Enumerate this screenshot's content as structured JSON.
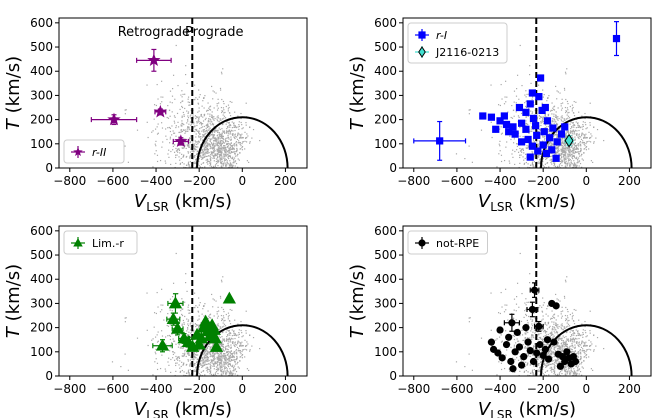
{
  "chart_data": [
    {
      "type": "scatter",
      "panel": "top-left",
      "xlabel": "V",
      "xlabel_sub": "LSR",
      "xlabel_unit": "(km/s)",
      "ylabel": "T",
      "ylabel_unit": "(km/s)",
      "xlim": [
        -850,
        300
      ],
      "ylim": [
        0,
        620
      ],
      "xticks": [
        "−800",
        "−600",
        "−400",
        "−200",
        "0",
        "200"
      ],
      "xtick_values": [
        -800,
        -600,
        -400,
        -200,
        0,
        200
      ],
      "yticks": [
        "0",
        "100",
        "200",
        "300",
        "400",
        "500",
        "600"
      ],
      "ytick_values": [
        0,
        100,
        200,
        300,
        400,
        500,
        600
      ],
      "annotations": [
        {
          "text": "Retrograde",
          "x": -410,
          "y": 545
        },
        {
          "text": "Prograde",
          "x": -130,
          "y": 545
        }
      ],
      "vline": -232,
      "circle_radius": 210,
      "legend": {
        "location": "lower left",
        "entries": [
          "r-II"
        ]
      },
      "series": [
        {
          "name": "r-II",
          "marker": "star",
          "color": "#800080",
          "points": [
            {
              "x": -410,
              "y": 445,
              "xerr": 80,
              "yerr": 45
            },
            {
              "x": -595,
              "y": 200,
              "xerr": 105,
              "yerr": 20
            },
            {
              "x": -380,
              "y": 232,
              "xerr": 25,
              "yerr": 12
            },
            {
              "x": -285,
              "y": 110,
              "xerr": 35,
              "yerr": 15
            }
          ]
        }
      ]
    },
    {
      "type": "scatter",
      "panel": "top-right",
      "xlabel": "V",
      "xlabel_sub": "LSR",
      "xlabel_unit": "(km/s)",
      "ylabel": "T",
      "ylabel_unit": "(km/s)",
      "xlim": [
        -850,
        300
      ],
      "ylim": [
        0,
        620
      ],
      "xticks": [
        "−800",
        "−600",
        "−400",
        "−200",
        "0",
        "200"
      ],
      "xtick_values": [
        -800,
        -600,
        -400,
        -200,
        0,
        200
      ],
      "yticks": [
        "0",
        "100",
        "200",
        "300",
        "400",
        "500",
        "600"
      ],
      "ytick_values": [
        0,
        100,
        200,
        300,
        400,
        500,
        600
      ],
      "vline": -232,
      "circle_radius": 210,
      "legend": {
        "location": "upper left",
        "entries": [
          "r-I",
          "J2116-0213"
        ]
      },
      "series": [
        {
          "name": "r-I",
          "marker": "square",
          "color": "#0000ff",
          "points": [
            {
              "x": 140,
              "y": 535,
              "xerr": 10,
              "yerr": 70
            },
            {
              "x": -680,
              "y": 112,
              "xerr": 120,
              "yerr": 80
            },
            {
              "x": -480,
              "y": 215
            },
            {
              "x": -440,
              "y": 210
            },
            {
              "x": -400,
              "y": 195
            },
            {
              "x": -370,
              "y": 180
            },
            {
              "x": -340,
              "y": 170
            },
            {
              "x": -310,
              "y": 250
            },
            {
              "x": -300,
              "y": 185
            },
            {
              "x": -280,
              "y": 230
            },
            {
              "x": -260,
              "y": 265
            },
            {
              "x": -250,
              "y": 310
            },
            {
              "x": -245,
              "y": 205
            },
            {
              "x": -235,
              "y": 175
            },
            {
              "x": -220,
              "y": 295
            },
            {
              "x": -212,
              "y": 372
            },
            {
              "x": -205,
              "y": 238
            },
            {
              "x": -195,
              "y": 150
            },
            {
              "x": -180,
              "y": 195
            },
            {
              "x": -170,
              "y": 125
            },
            {
              "x": -155,
              "y": 165
            },
            {
              "x": -135,
              "y": 108
            },
            {
              "x": -115,
              "y": 140
            },
            {
              "x": -100,
              "y": 170
            },
            {
              "x": -360,
              "y": 150
            },
            {
              "x": -330,
              "y": 140
            },
            {
              "x": -300,
              "y": 108
            },
            {
              "x": -270,
              "y": 118
            },
            {
              "x": -250,
              "y": 90
            },
            {
              "x": -225,
              "y": 70
            },
            {
              "x": -200,
              "y": 95
            },
            {
              "x": -185,
              "y": 60
            },
            {
              "x": -160,
              "y": 75
            },
            {
              "x": -140,
              "y": 40
            },
            {
              "x": -380,
              "y": 215
            },
            {
              "x": -420,
              "y": 160
            },
            {
              "x": -280,
              "y": 160
            },
            {
              "x": -230,
              "y": 135
            },
            {
              "x": -190,
              "y": 250
            },
            {
              "x": -260,
              "y": 45
            }
          ]
        },
        {
          "name": "J2116-0213",
          "marker": "diamond",
          "color": "#40e0d0",
          "points": [
            {
              "x": -80,
              "y": 113,
              "xerr": 18,
              "yerr": 20
            }
          ]
        }
      ]
    },
    {
      "type": "scatter",
      "panel": "bottom-left",
      "xlabel": "V",
      "xlabel_sub": "LSR",
      "xlabel_unit": "(km/s)",
      "ylabel": "T",
      "ylabel_unit": "(km/s)",
      "xlim": [
        -850,
        300
      ],
      "ylim": [
        0,
        620
      ],
      "xticks": [
        "−800",
        "−600",
        "−400",
        "−200",
        "0",
        "200"
      ],
      "xtick_values": [
        -800,
        -600,
        -400,
        -200,
        0,
        200
      ],
      "yticks": [
        "0",
        "100",
        "200",
        "300",
        "400",
        "500",
        "600"
      ],
      "ytick_values": [
        0,
        100,
        200,
        300,
        400,
        500,
        600
      ],
      "vline": -232,
      "circle_radius": 210,
      "legend": {
        "location": "upper left",
        "entries": [
          "Lim.-r"
        ]
      },
      "series": [
        {
          "name": "Lim.-r",
          "marker": "triangle",
          "color": "#008000",
          "points": [
            {
              "x": -370,
              "y": 125,
              "xerr": 45,
              "yerr": 25
            },
            {
              "x": -310,
              "y": 300,
              "xerr": 35,
              "yerr": 40
            },
            {
              "x": -320,
              "y": 235,
              "xerr": 30,
              "yerr": 25
            },
            {
              "x": -300,
              "y": 195,
              "xerr": 25,
              "yerr": 25
            },
            {
              "x": -270,
              "y": 155,
              "xerr": 25,
              "yerr": 20
            },
            {
              "x": -250,
              "y": 140,
              "xerr": 20,
              "yerr": 20
            },
            {
              "x": -230,
              "y": 120,
              "xerr": 20,
              "yerr": 15
            },
            {
              "x": -210,
              "y": 170
            },
            {
              "x": -190,
              "y": 155
            },
            {
              "x": -180,
              "y": 200
            },
            {
              "x": -170,
              "y": 225
            },
            {
              "x": -160,
              "y": 185
            },
            {
              "x": -150,
              "y": 165
            },
            {
              "x": -140,
              "y": 210
            },
            {
              "x": -130,
              "y": 190
            },
            {
              "x": -125,
              "y": 155
            },
            {
              "x": -120,
              "y": 120
            },
            {
              "x": -200,
              "y": 130
            },
            {
              "x": -60,
              "y": 320
            }
          ]
        }
      ]
    },
    {
      "type": "scatter",
      "panel": "bottom-right",
      "xlabel": "V",
      "xlabel_sub": "LSR",
      "xlabel_unit": "(km/s)",
      "ylabel": "T",
      "ylabel_unit": "(km/s)",
      "xlim": [
        -850,
        300
      ],
      "ylim": [
        0,
        620
      ],
      "xticks": [
        "−800",
        "−600",
        "−400",
        "−200",
        "0",
        "200"
      ],
      "xtick_values": [
        -800,
        -600,
        -400,
        -200,
        0,
        200
      ],
      "yticks": [
        "0",
        "100",
        "200",
        "300",
        "400",
        "500",
        "600"
      ],
      "ytick_values": [
        0,
        100,
        200,
        300,
        400,
        500,
        600
      ],
      "vline": -232,
      "circle_radius": 210,
      "legend": {
        "location": "upper left",
        "entries": [
          "not-RPE"
        ]
      },
      "series": [
        {
          "name": "not-RPE",
          "marker": "circle",
          "color": "#000000",
          "points": [
            {
              "x": -240,
              "y": 355,
              "xerr": 20,
              "yerr": 30
            },
            {
              "x": -345,
              "y": 220,
              "xerr": 35,
              "yerr": 35
            },
            {
              "x": -250,
              "y": 275,
              "xerr": 25,
              "yerr": 30
            },
            {
              "x": -220,
              "y": 205,
              "xerr": 20,
              "yerr": 20
            },
            {
              "x": -440,
              "y": 140
            },
            {
              "x": -430,
              "y": 110
            },
            {
              "x": -410,
              "y": 95
            },
            {
              "x": -390,
              "y": 75
            },
            {
              "x": -370,
              "y": 130
            },
            {
              "x": -360,
              "y": 160
            },
            {
              "x": -350,
              "y": 60
            },
            {
              "x": -330,
              "y": 100
            },
            {
              "x": -310,
              "y": 120
            },
            {
              "x": -300,
              "y": 45
            },
            {
              "x": -290,
              "y": 80
            },
            {
              "x": -270,
              "y": 140
            },
            {
              "x": -260,
              "y": 105
            },
            {
              "x": -245,
              "y": 60
            },
            {
              "x": -230,
              "y": 95
            },
            {
              "x": -215,
              "y": 130
            },
            {
              "x": -200,
              "y": 85
            },
            {
              "x": -190,
              "y": 110
            },
            {
              "x": -175,
              "y": 70
            },
            {
              "x": -160,
              "y": 300
            },
            {
              "x": -140,
              "y": 290
            },
            {
              "x": -130,
              "y": 90
            },
            {
              "x": -110,
              "y": 80
            },
            {
              "x": -100,
              "y": 60
            },
            {
              "x": -90,
              "y": 100
            },
            {
              "x": -80,
              "y": 75
            },
            {
              "x": -70,
              "y": 50
            },
            {
              "x": -60,
              "y": 80
            },
            {
              "x": -50,
              "y": 60
            },
            {
              "x": -340,
              "y": 30
            },
            {
              "x": -180,
              "y": 150
            },
            {
              "x": -150,
              "y": 140
            },
            {
              "x": -120,
              "y": 40
            },
            {
              "x": -280,
              "y": 200
            },
            {
              "x": -400,
              "y": 190
            },
            {
              "x": -320,
              "y": 180
            }
          ]
        }
      ]
    }
  ]
}
